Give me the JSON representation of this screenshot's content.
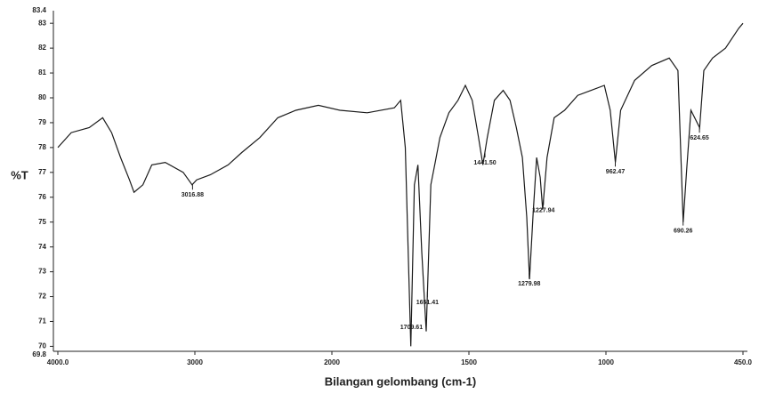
{
  "chart_data": {
    "type": "line",
    "x_label": "Bilangan gelombang (cm-1)",
    "y_label": "%T",
    "color": "#1a1a1a",
    "x": [
      4000,
      3902,
      3771,
      3673,
      3608,
      3542,
      3477,
      3444,
      3379,
      3314,
      3216,
      3085,
      3020,
      2987,
      2888,
      2757,
      2658,
      2526,
      2395,
      2263,
      2099,
      1970,
      1871,
      1772,
      1749,
      1732,
      1712,
      1699,
      1686,
      1672,
      1656,
      1639,
      1623,
      1606,
      1573,
      1540,
      1513,
      1488,
      1465,
      1449,
      1433,
      1407,
      1375,
      1350,
      1327,
      1305,
      1289,
      1279,
      1266,
      1253,
      1240,
      1231,
      1215,
      1189,
      1151,
      1103,
      1054,
      1006,
      983,
      962,
      941,
      885,
      816,
      746,
      711,
      690,
      676,
      659,
      624,
      607,
      572,
      520,
      467,
      450
    ],
    "values": [
      78.0,
      78.6,
      78.8,
      79.2,
      78.6,
      77.6,
      76.7,
      76.2,
      76.5,
      77.3,
      77.4,
      77.0,
      76.5,
      76.7,
      76.9,
      77.3,
      77.8,
      78.4,
      79.2,
      79.5,
      79.7,
      79.5,
      79.4,
      79.6,
      79.9,
      78.0,
      70.0,
      76.5,
      77.3,
      73.8,
      70.6,
      76.5,
      77.4,
      78.4,
      79.4,
      79.9,
      80.5,
      79.9,
      78.4,
      77.3,
      78.4,
      79.9,
      80.3,
      79.9,
      78.8,
      77.6,
      75.2,
      72.7,
      75.3,
      77.6,
      76.8,
      75.5,
      77.6,
      79.2,
      79.5,
      80.1,
      80.3,
      80.5,
      79.5,
      77.4,
      79.5,
      80.7,
      81.3,
      81.6,
      81.1,
      75.0,
      77.1,
      79.5,
      78.8,
      81.1,
      81.6,
      82.0,
      82.8,
      83.0
    ],
    "xlim": [
      4000,
      450
    ],
    "xticks": [
      {
        "value": 4000,
        "label": "4000.0"
      },
      3000,
      2000,
      1500,
      1000,
      {
        "value": 450,
        "label": "450.0"
      }
    ],
    "ylim": [
      69.8,
      83.4
    ],
    "yticks": [
      70,
      71,
      72,
      73,
      74,
      75,
      76,
      77,
      78,
      79,
      80,
      81,
      82,
      83
    ],
    "annotations": [
      {
        "value": 3016.88,
        "label": "3016.88"
      },
      {
        "value": 1709.61,
        "label": "1709.61"
      },
      {
        "value": 1651.41,
        "label": "1651.41"
      },
      {
        "value": 1441.5,
        "label": "1441.50"
      },
      {
        "value": 1279.98,
        "label": "1279.98"
      },
      {
        "value": 1227.94,
        "label": "1227.94"
      },
      {
        "value": 962.47,
        "label": "962.47"
      },
      {
        "value": 690.26,
        "label": "690.26"
      },
      {
        "value": 624.65,
        "label": "624.65"
      }
    ]
  }
}
